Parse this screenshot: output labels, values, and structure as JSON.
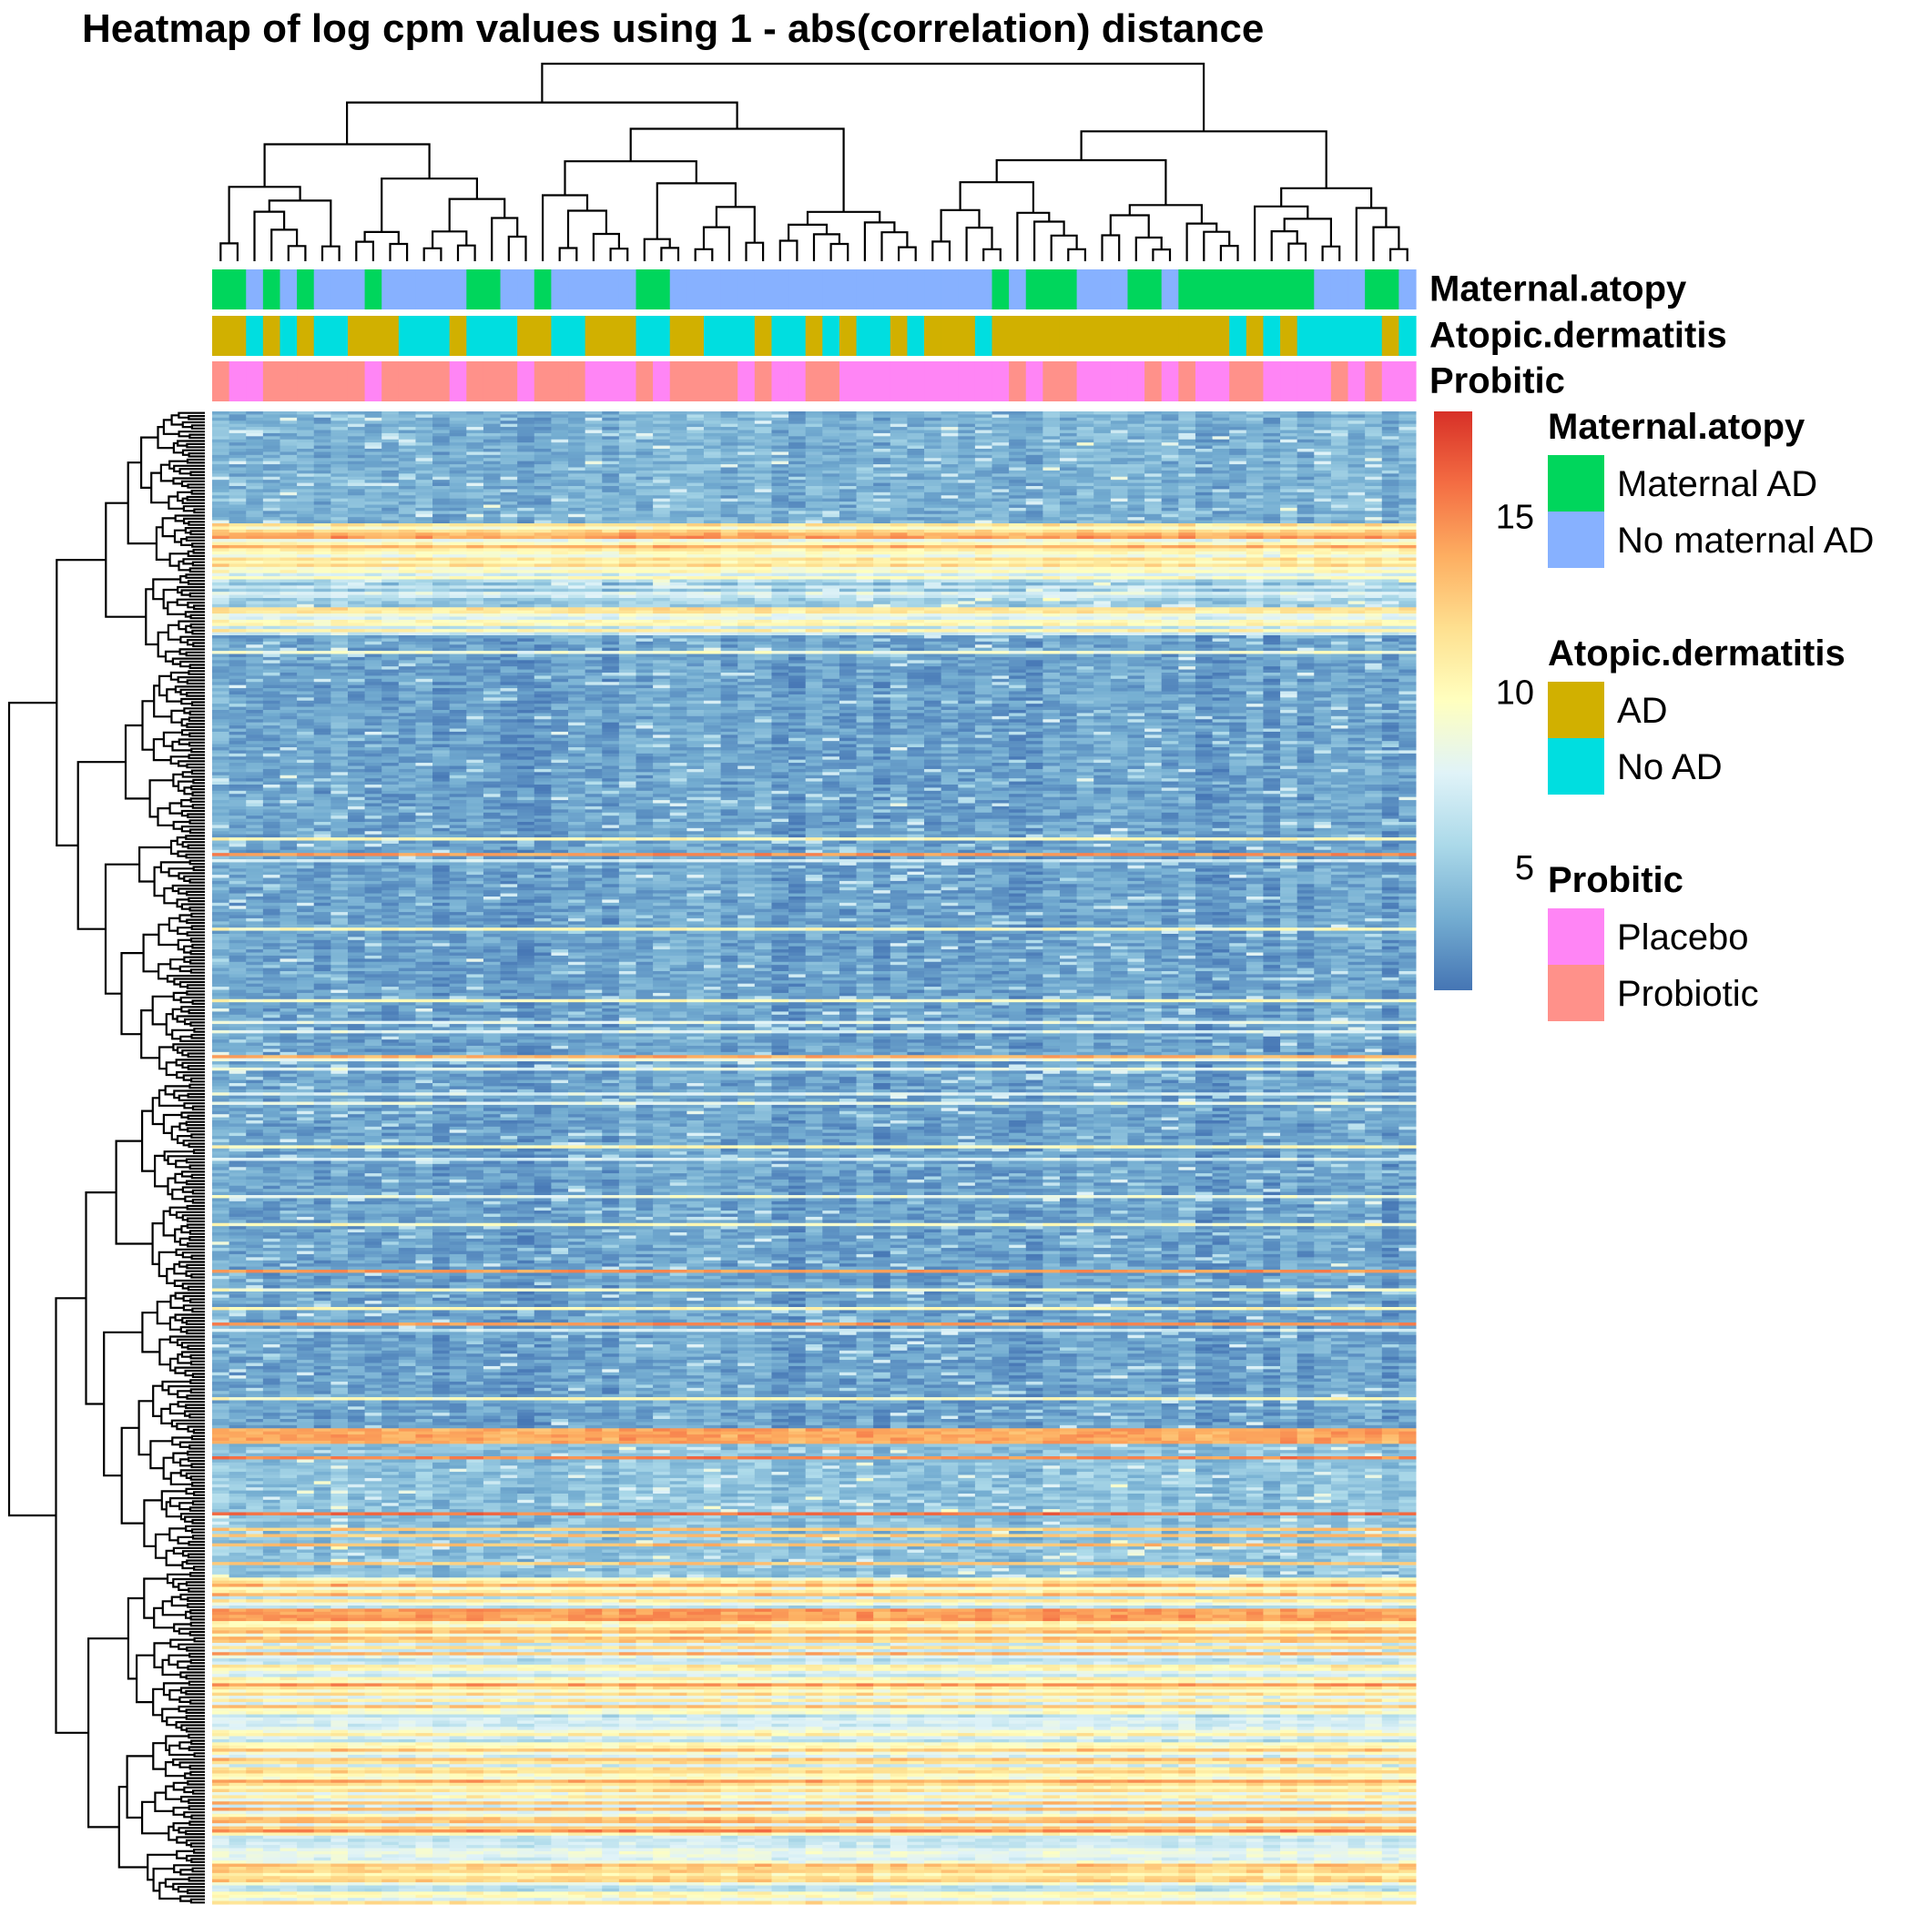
{
  "chart_data": {
    "type": "heatmap",
    "title": "Heatmap of log cpm values using 1 - abs(correlation) distance",
    "color_scale": {
      "palette": [
        "#4575b4",
        "#74add1",
        "#abd9e9",
        "#e0f3f8",
        "#ffffbf",
        "#fee090",
        "#fdae61",
        "#f46d43",
        "#d73027"
      ],
      "range": [
        1.5,
        18
      ],
      "ticks": [
        5,
        10,
        15
      ]
    },
    "annotation_tracks": [
      {
        "name": "Maternal.atopy",
        "levels": [
          {
            "label": "Maternal AD",
            "color": "#00D65C"
          },
          {
            "label": "No maternal AD",
            "color": "#87B1FF"
          }
        ],
        "samples": [
          0,
          0,
          1,
          0,
          1,
          0,
          1,
          1,
          1,
          0,
          1,
          1,
          1,
          1,
          1,
          0,
          0,
          1,
          1,
          0,
          1,
          1,
          1,
          1,
          1,
          0,
          0,
          1,
          1,
          1,
          1,
          1,
          1,
          1,
          1,
          1,
          1,
          1,
          1,
          1,
          1,
          1,
          1,
          1,
          1,
          1,
          0,
          1,
          0,
          0,
          0,
          1,
          1,
          1,
          0,
          0,
          1,
          0,
          0,
          0,
          0,
          0,
          0,
          0,
          0,
          1,
          1,
          1,
          0,
          0,
          1
        ]
      },
      {
        "name": "Atopic.dermatitis",
        "levels": [
          {
            "label": "AD",
            "color": "#D1B000"
          },
          {
            "label": "No AD",
            "color": "#00DEE0"
          }
        ],
        "samples": [
          0,
          0,
          1,
          0,
          1,
          0,
          1,
          1,
          0,
          0,
          0,
          1,
          1,
          1,
          0,
          1,
          1,
          1,
          0,
          0,
          1,
          1,
          0,
          0,
          0,
          1,
          1,
          0,
          0,
          1,
          1,
          1,
          0,
          1,
          1,
          0,
          1,
          0,
          1,
          1,
          0,
          1,
          0,
          0,
          0,
          1,
          0,
          0,
          0,
          0,
          0,
          0,
          0,
          0,
          0,
          0,
          0,
          0,
          0,
          0,
          1,
          0,
          1,
          0,
          1,
          1,
          1,
          1,
          1,
          0,
          1
        ]
      },
      {
        "name": "Probitic",
        "levels": [
          {
            "label": "Placebo",
            "color": "#FF85F5"
          },
          {
            "label": "Probiotic",
            "color": "#FF918A"
          }
        ],
        "samples": [
          1,
          0,
          0,
          1,
          1,
          1,
          1,
          1,
          1,
          0,
          1,
          1,
          1,
          1,
          0,
          1,
          1,
          1,
          0,
          1,
          1,
          1,
          0,
          0,
          0,
          1,
          0,
          1,
          1,
          1,
          1,
          0,
          1,
          0,
          0,
          1,
          1,
          0,
          0,
          0,
          0,
          0,
          0,
          0,
          0,
          0,
          0,
          1,
          0,
          1,
          1,
          0,
          0,
          0,
          0,
          1,
          0,
          1,
          0,
          0,
          1,
          1,
          0,
          0,
          0,
          0,
          1,
          0,
          1,
          0,
          0
        ]
      }
    ],
    "n_samples": 71,
    "n_genes": 480,
    "row_profile": [
      {
        "from": 0.0,
        "to": 0.075,
        "level": 3.8,
        "note": "dispersed low block"
      },
      {
        "from": 0.075,
        "to": 0.1,
        "level": 11.0
      },
      {
        "from": 0.1,
        "to": 0.15,
        "level": 8.5
      },
      {
        "from": 0.15,
        "to": 0.68,
        "level": 3.2
      },
      {
        "from": 0.68,
        "to": 0.69,
        "level": 14.0
      },
      {
        "from": 0.69,
        "to": 0.78,
        "level": 4.5
      },
      {
        "from": 0.78,
        "to": 1.0,
        "level": 10.5
      }
    ]
  }
}
